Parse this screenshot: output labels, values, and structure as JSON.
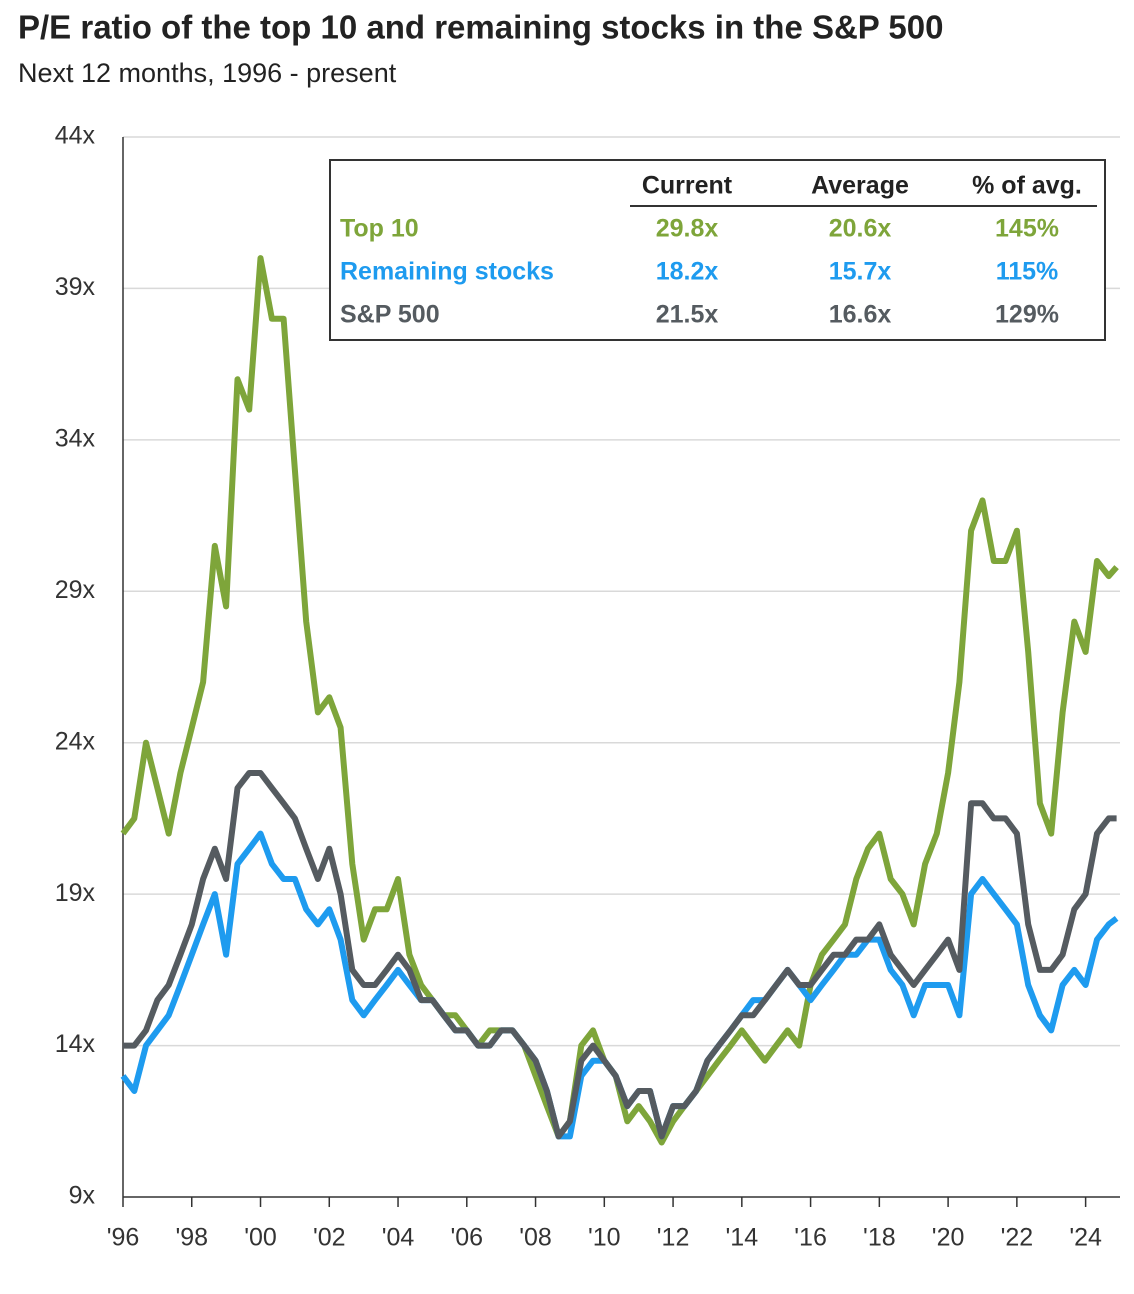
{
  "chart_data": {
    "type": "line",
    "title": "P/E ratio of the top 10 and remaining stocks in the S&P 500",
    "subtitle": "Next 12 months, 1996 - present",
    "xlim": [
      1996,
      2025
    ],
    "xticks": [
      {
        "value": 1996,
        "label": "'96"
      },
      {
        "value": 1998,
        "label": "'98"
      },
      {
        "value": 2000,
        "label": "'00"
      },
      {
        "value": 2002,
        "label": "'02"
      },
      {
        "value": 2004,
        "label": "'04"
      },
      {
        "value": 2006,
        "label": "'06"
      },
      {
        "value": 2008,
        "label": "'08"
      },
      {
        "value": 2010,
        "label": "'10"
      },
      {
        "value": 2012,
        "label": "'12"
      },
      {
        "value": 2014,
        "label": "'14"
      },
      {
        "value": 2016,
        "label": "'16"
      },
      {
        "value": 2018,
        "label": "'18"
      },
      {
        "value": 2020,
        "label": "'20"
      },
      {
        "value": 2022,
        "label": "'22"
      },
      {
        "value": 2024,
        "label": "'24"
      }
    ],
    "ylim": [
      9,
      44
    ],
    "yticks": [
      {
        "value": 9,
        "label": "9x"
      },
      {
        "value": 14,
        "label": "14x"
      },
      {
        "value": 19,
        "label": "19x"
      },
      {
        "value": 24,
        "label": "24x"
      },
      {
        "value": 29,
        "label": "29x"
      },
      {
        "value": 34,
        "label": "34x"
      },
      {
        "value": 39,
        "label": "39x"
      },
      {
        "value": 44,
        "label": "44x"
      }
    ],
    "grid": true,
    "x": [
      1996,
      1996.33,
      1996.67,
      1997,
      1997.33,
      1997.67,
      1998,
      1998.33,
      1998.67,
      1999,
      1999.33,
      1999.67,
      2000,
      2000.33,
      2000.67,
      2001,
      2001.33,
      2001.67,
      2002,
      2002.33,
      2002.67,
      2003,
      2003.33,
      2003.67,
      2004,
      2004.33,
      2004.67,
      2005,
      2005.33,
      2005.67,
      2006,
      2006.33,
      2006.67,
      2007,
      2007.33,
      2007.67,
      2008,
      2008.33,
      2008.67,
      2009,
      2009.33,
      2009.67,
      2010,
      2010.33,
      2010.67,
      2011,
      2011.33,
      2011.67,
      2012,
      2012.33,
      2012.67,
      2013,
      2013.33,
      2013.67,
      2014,
      2014.33,
      2014.67,
      2015,
      2015.33,
      2015.67,
      2016,
      2016.33,
      2016.67,
      2017,
      2017.33,
      2017.67,
      2018,
      2018.33,
      2018.67,
      2019,
      2019.33,
      2019.67,
      2020,
      2020.33,
      2020.67,
      2021,
      2021.33,
      2021.67,
      2022,
      2022.33,
      2022.67,
      2023,
      2023.33,
      2023.67,
      2024,
      2024.33,
      2024.67,
      2024.9
    ],
    "series": [
      {
        "name": "Top 10",
        "color": "#7ea53a",
        "values": [
          21,
          21.5,
          24,
          22.5,
          21,
          23,
          24.5,
          26,
          30.5,
          28.5,
          36,
          35,
          40,
          38,
          38,
          33,
          28,
          25,
          25.5,
          24.5,
          20,
          17.5,
          18.5,
          18.5,
          19.5,
          17,
          16,
          15.5,
          15,
          15,
          14.5,
          14,
          14.5,
          14.5,
          14.5,
          14,
          13,
          12,
          11,
          11.5,
          14,
          14.5,
          13.5,
          13,
          11.5,
          12,
          11.5,
          10.8,
          11.5,
          12,
          12.5,
          13,
          13.5,
          14,
          14.5,
          14,
          13.5,
          14,
          14.5,
          14,
          16,
          17,
          17.5,
          18,
          19.5,
          20.5,
          21,
          19.5,
          19,
          18,
          20,
          21,
          23,
          26,
          31,
          32,
          30,
          30,
          31,
          27,
          22,
          21,
          25,
          28,
          27,
          30,
          29.5,
          29.8
        ]
      },
      {
        "name": "Remaining stocks",
        "color": "#1e9bef",
        "values": [
          13,
          12.5,
          14,
          14.5,
          15,
          16,
          17,
          18,
          19,
          17,
          20,
          20.5,
          21,
          20,
          19.5,
          19.5,
          18.5,
          18,
          18.5,
          17.5,
          15.5,
          15,
          15.5,
          16,
          16.5,
          16,
          15.5,
          15.5,
          15,
          14.5,
          14.5,
          14,
          14,
          14.5,
          14.5,
          14,
          13.5,
          12.5,
          11,
          11,
          13,
          13.5,
          13.5,
          13,
          12,
          12.5,
          12.5,
          11,
          12,
          12,
          12.5,
          13.5,
          14,
          14.5,
          15,
          15.5,
          15.5,
          16,
          16.5,
          16,
          15.5,
          16,
          16.5,
          17,
          17,
          17.5,
          17.5,
          16.5,
          16,
          15,
          16,
          16,
          16,
          15,
          19,
          19.5,
          19,
          18.5,
          18,
          16,
          15,
          14.5,
          16,
          16.5,
          16,
          17.5,
          18,
          18.2
        ]
      },
      {
        "name": "S&P 500",
        "color": "#555b60",
        "values": [
          14,
          14,
          14.5,
          15.5,
          16,
          17,
          18,
          19.5,
          20.5,
          19.5,
          22.5,
          23,
          23,
          22.5,
          22,
          21.5,
          20.5,
          19.5,
          20.5,
          19,
          16.5,
          16,
          16,
          16.5,
          17,
          16.5,
          15.5,
          15.5,
          15,
          14.5,
          14.5,
          14,
          14,
          14.5,
          14.5,
          14,
          13.5,
          12.5,
          11,
          11.5,
          13.5,
          14,
          13.5,
          13,
          12,
          12.5,
          12.5,
          11,
          12,
          12,
          12.5,
          13.5,
          14,
          14.5,
          15,
          15,
          15.5,
          16,
          16.5,
          16,
          16,
          16.5,
          17,
          17,
          17.5,
          17.5,
          18,
          17,
          16.5,
          16,
          16.5,
          17,
          17.5,
          16.5,
          22,
          22,
          21.5,
          21.5,
          21,
          18,
          16.5,
          16.5,
          17,
          18.5,
          19,
          21,
          21.5,
          21.5
        ]
      }
    ],
    "table": {
      "columns": [
        "Current",
        "Average",
        "% of avg."
      ],
      "rows": [
        {
          "label": "Top 10",
          "cells": [
            "29.8x",
            "20.6x",
            "145%"
          ]
        },
        {
          "label": "Remaining stocks",
          "cells": [
            "18.2x",
            "15.7x",
            "115%"
          ]
        },
        {
          "label": "S&P 500",
          "cells": [
            "21.5x",
            "16.6x",
            "129%"
          ]
        }
      ]
    }
  }
}
